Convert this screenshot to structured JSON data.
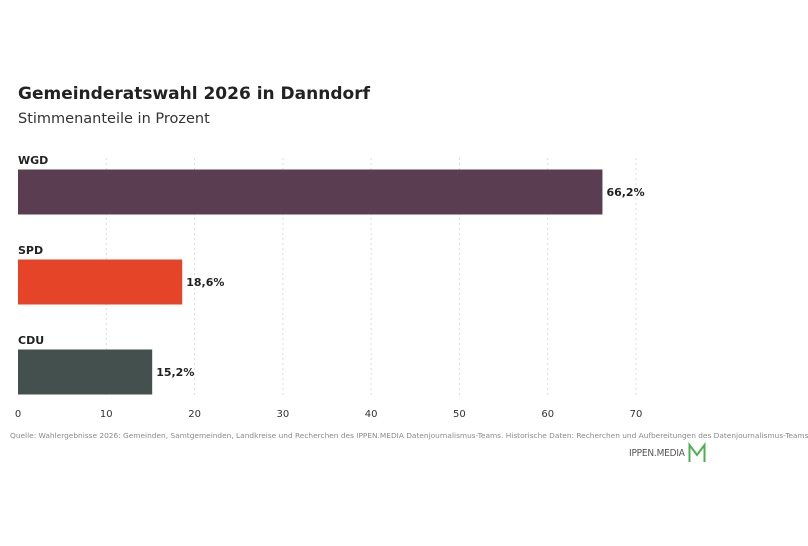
{
  "title": "Gemeinderatswahl 2026 in Danndorf",
  "subtitle": "Stimmenanteile in Prozent",
  "source": "Quelle: Wahlergebnisse 2026: Gemeinden, Samtgemeinden, Landkreise und Recherchen des IPPEN.MEDIA Datenjournalismus-Teams. Historische Daten: Recherchen und Aufbereitungen des Datenjournalismus-Teams",
  "logo": {
    "text": "IPPEN.MEDIA",
    "mark_color": "#4caf50"
  },
  "chart_data": {
    "type": "bar",
    "orientation": "horizontal",
    "categories": [
      "WGD",
      "SPD",
      "CDU"
    ],
    "values": [
      66.2,
      18.6,
      15.2
    ],
    "value_labels": [
      "66,2%",
      "18,6%",
      "15,2%"
    ],
    "colors": [
      "#5b3d52",
      "#e64429",
      "#44504e"
    ],
    "xlim": [
      0,
      70
    ],
    "xticks": [
      0,
      10,
      20,
      30,
      40,
      50,
      60,
      70
    ],
    "grid": "vertical dotted"
  }
}
